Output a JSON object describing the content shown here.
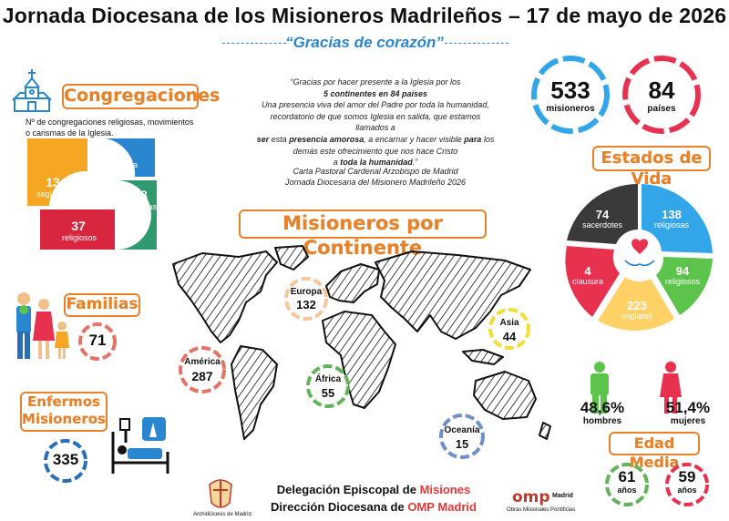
{
  "header": {
    "title": "Jornada Diocesana de los Misioneros Madrileños – 17 de mayo de 2026",
    "subtitle": "“Gracias de corazón”"
  },
  "quote": {
    "l1": "“Gracias por hacer presente a la Iglesia por los",
    "l2": "5 continentes en 84 países",
    "l3": "Una presencia viva del amor del Padre por toda la humanidad,",
    "l4": "recordatorio de que somos Iglesia en salida, que estamos llamados a",
    "l5a": "ser",
    "l5b": " esta ",
    "l5c": "presencia amorosa",
    "l5d": ", a encarnar y hacer visible ",
    "l5e": "para",
    "l5f": " los",
    "l6": "demás este ofrecimiento que nos hace Cristo",
    "l7a": "a ",
    "l7b": "toda la humanidad",
    "l7c": ".”",
    "source1": "Carta Pastoral Cardenal Arzobispo de Madrid",
    "source2": "Jornada Diocesana del Misionero Madrileño 2026"
  },
  "congregaciones": {
    "title": "Congregaciones",
    "desc1": "Nº de congregaciones religiosas, movimientos",
    "desc2": "o carismas de la Iglesia.",
    "segments": [
      {
        "value": "4",
        "label": "clausura",
        "color": "#2a86cf"
      },
      {
        "value": "58",
        "label": "religiosas",
        "color": "#2e9a6e"
      },
      {
        "value": "37",
        "label": "religiosos",
        "color": "#d7263d"
      },
      {
        "value": "13",
        "label": "seglares",
        "color": "#f5a623"
      }
    ]
  },
  "totals": {
    "misioneros_value": "533",
    "misioneros_label": "misioneros",
    "paises_value": "84",
    "paises_label": "países"
  },
  "estados": {
    "title": "Estados de Vida",
    "segments": [
      {
        "value": "74",
        "label": "sacerdotes",
        "color": "#3a3a3a"
      },
      {
        "value": "138",
        "label": "religiosas",
        "color": "#32a6e8"
      },
      {
        "value": "94",
        "label": "religiosos",
        "color": "#5cc44a"
      },
      {
        "value": "223",
        "label": "seglares",
        "color": "#ffd166"
      },
      {
        "value": "4",
        "label": "clausura",
        "color": "#e8304f"
      }
    ]
  },
  "continentes": {
    "title": "Misioneros por Continente",
    "europa": {
      "name": "Europa",
      "value": "132",
      "color": "#f6c79a"
    },
    "america": {
      "name": "América",
      "value": "287",
      "color": "#e57368"
    },
    "africa": {
      "name": "África",
      "value": "55",
      "color": "#63b35a"
    },
    "asia": {
      "name": "Asia",
      "value": "44",
      "color": "#f2de3a"
    },
    "oceania": {
      "name": "Oceanía",
      "value": "15",
      "color": "#6e8fc7"
    }
  },
  "familias": {
    "title": "Familias",
    "value": "71",
    "color": "#e57368"
  },
  "enfermos": {
    "title1": "Enfermos",
    "title2": "Misioneros",
    "value": "335",
    "color": "#2a6fb5"
  },
  "genero": {
    "hombres_pct": "48,6%",
    "hombres_label": "hombres",
    "mujeres_pct": "51,4%",
    "mujeres_label": "mujeres"
  },
  "edad": {
    "title": "Edad Media",
    "hombres_value": "61",
    "mujeres_value": "59",
    "unit": "años"
  },
  "footer": {
    "line1a": "Delegación Episcopal de ",
    "line1b": "Misiones",
    "line2a": "Dirección Diocesana de ",
    "line2b": "OMP Madrid",
    "archi": "Archidiócesis de Madrid",
    "omp_logo": "omp",
    "omp_city": "Madrid",
    "omp_sub": "Obras Misionales Pontificias"
  }
}
